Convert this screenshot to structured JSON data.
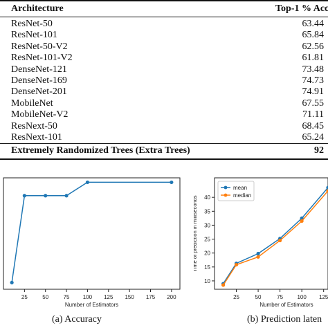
{
  "table": {
    "header": {
      "architecture": "Architecture",
      "accuracy": "Top-1 % Acc"
    },
    "rows": [
      {
        "architecture": "ResNet-50",
        "accuracy": "63.44"
      },
      {
        "architecture": "ResNet-101",
        "accuracy": "65.84"
      },
      {
        "architecture": "ResNet-50-V2",
        "accuracy": "62.56"
      },
      {
        "architecture": "ResNet-101-V2",
        "accuracy": "61.81"
      },
      {
        "architecture": "DenseNet-121",
        "accuracy": "73.48"
      },
      {
        "architecture": "DenseNet-169",
        "accuracy": "74.73"
      },
      {
        "architecture": "DenseNet-201",
        "accuracy": "74.91"
      },
      {
        "architecture": "MobileNet",
        "accuracy": "67.55"
      },
      {
        "architecture": "MobileNet-V2",
        "accuracy": "71.11"
      },
      {
        "architecture": "ResNext-50",
        "accuracy": "68.45"
      },
      {
        "architecture": "ResNext-101",
        "accuracy": "65.24"
      }
    ],
    "final": {
      "architecture": "Extremely Randomized Trees (Extra Trees)",
      "accuracy": "92"
    }
  },
  "captions": {
    "a": "(a) Accuracy",
    "b": "(b) Prediction laten"
  },
  "chart_data": [
    {
      "type": "line",
      "xlabel": "Number of Estimators",
      "ylabel": "",
      "xticks": [
        25,
        50,
        75,
        100,
        125,
        150,
        175,
        200
      ],
      "xlim": [
        0,
        210
      ],
      "ylim": [
        0,
        1
      ],
      "series": [
        {
          "x": [
            10,
            25,
            50,
            75,
            100,
            200
          ],
          "values": [
            0.06,
            0.84,
            0.84,
            0.84,
            0.96,
            0.96
          ],
          "color": "#1f77b4"
        }
      ]
    },
    {
      "type": "line",
      "xlabel": "Number of Estimators",
      "ylabel": "Time of prediction in milliseconds",
      "xticks": [
        25,
        50,
        75,
        100,
        125
      ],
      "yticks": [
        10,
        15,
        20,
        25,
        30,
        35,
        40
      ],
      "xlim": [
        0,
        130
      ],
      "ylim": [
        7,
        47
      ],
      "legend": "top-left",
      "series": [
        {
          "name": "mean",
          "x": [
            10,
            25,
            50,
            75,
            100,
            130
          ],
          "values": [
            9.0,
            16.3,
            19.8,
            25.2,
            32.5,
            43.5
          ],
          "color": "#1f77b4"
        },
        {
          "name": "median",
          "x": [
            10,
            25,
            50,
            75,
            100,
            130
          ],
          "values": [
            8.5,
            15.8,
            18.6,
            24.5,
            31.5,
            42.3
          ],
          "color": "#ff7f0e"
        }
      ]
    }
  ]
}
